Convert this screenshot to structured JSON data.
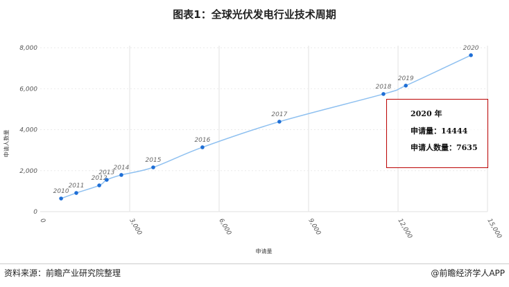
{
  "title": "图表1：全球光伏发电行业技术周期",
  "footer": {
    "source": "资料来源：前瞻产业研究院整理",
    "brand": "@前瞻经济学人APP"
  },
  "annotation": {
    "year": "2020 年",
    "applications": "申请量：14444",
    "applicants": "申请人数量：7635"
  },
  "chart_data": {
    "type": "line",
    "xlabel": "申请量",
    "ylabel": "申请人数量",
    "xlim": [
      0,
      15000
    ],
    "ylim": [
      0,
      8000
    ],
    "xticks": [
      "0",
      "3,000",
      "6,000",
      "9,000",
      "12,000",
      "15,000"
    ],
    "yticks": [
      "0",
      "2,000",
      "4,000",
      "6,000",
      "8,000"
    ],
    "grid": true,
    "color": "#1f6fd6",
    "line_color": "#8ec0f0",
    "points": [
      {
        "label": "2010",
        "x": 700,
        "y": 640
      },
      {
        "label": "2011",
        "x": 1210,
        "y": 910
      },
      {
        "label": "2012",
        "x": 1980,
        "y": 1280
      },
      {
        "label": "2013",
        "x": 2230,
        "y": 1550
      },
      {
        "label": "2014",
        "x": 2720,
        "y": 1790
      },
      {
        "label": "2015",
        "x": 3790,
        "y": 2160
      },
      {
        "label": "2016",
        "x": 5440,
        "y": 3140
      },
      {
        "label": "2017",
        "x": 8020,
        "y": 4390
      },
      {
        "label": "2018",
        "x": 11510,
        "y": 5740
      },
      {
        "label": "2019",
        "x": 12260,
        "y": 6150
      },
      {
        "label": "2020",
        "x": 14444,
        "y": 7635
      }
    ]
  }
}
